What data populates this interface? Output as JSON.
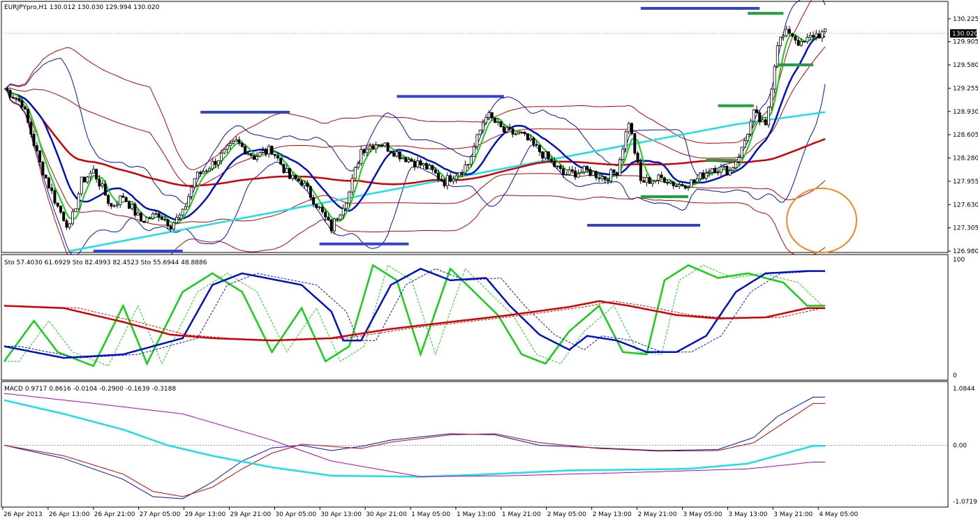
{
  "window": {
    "main_label": "EURJPYpro,H1  130.012 130.030 129.994 130.020",
    "stoch_label": "Sto 57.4030 61.6929  Sto 82.4993 82.4523  Sto 55.6944 48.8886",
    "macd_label": "MACD 0.9717 0.8616 -0.0104 -0.2900 -0.1639 -0.3188",
    "current_price": "130.020"
  },
  "colors": {
    "red": "#d20000",
    "thin_red": "#c40000",
    "blue": "#0010c8",
    "green": "#12d012",
    "cyan": "#19e0e8",
    "magenta": "#c000c0",
    "level": "#3344cc",
    "level_green": "#20a040",
    "circle": "#f08a1e"
  },
  "chart_data": [
    {
      "type": "candlestick",
      "title": "EURJPYpro,H1",
      "ylim": [
        126.98,
        130.35
      ],
      "yticks": [
        "130.225",
        "129.905",
        "129.580",
        "129.255",
        "128.930",
        "128.605",
        "128.280",
        "127.955",
        "127.630",
        "127.305",
        "126.980"
      ],
      "xticks": [
        "26 Apr 2013",
        "26 Apr 13:00",
        "26 Apr 21:00",
        "27 Apr 05:00",
        "29 Apr 13:00",
        "29 Apr 21:00",
        "30 Apr 05:00",
        "30 Apr 13:00",
        "30 Apr 21:00",
        "1 May 05:00",
        "1 May 13:00",
        "1 May 21:00",
        "2 May 05:00",
        "2 May 13:00",
        "2 May 21:00",
        "3 May 05:00",
        "3 May 13:00",
        "3 May 21:00",
        "4 May 05:00"
      ],
      "current_price": 130.02,
      "close_anchors": [
        [
          0,
          129.25
        ],
        [
          6,
          129.05
        ],
        [
          12,
          128.2
        ],
        [
          18,
          127.6
        ],
        [
          22,
          127.3
        ],
        [
          26,
          127.95
        ],
        [
          30,
          128.1
        ],
        [
          36,
          127.6
        ],
        [
          40,
          127.75
        ],
        [
          46,
          127.4
        ],
        [
          52,
          127.5
        ],
        [
          56,
          127.35
        ],
        [
          60,
          127.5
        ],
        [
          64,
          128.0
        ],
        [
          70,
          128.2
        ],
        [
          78,
          128.5
        ],
        [
          84,
          128.3
        ],
        [
          90,
          128.4
        ],
        [
          96,
          128.0
        ],
        [
          100,
          127.95
        ],
        [
          104,
          127.7
        ],
        [
          110,
          127.3
        ],
        [
          116,
          127.8
        ],
        [
          120,
          128.4
        ],
        [
          126,
          128.5
        ],
        [
          134,
          128.3
        ],
        [
          142,
          128.15
        ],
        [
          148,
          127.95
        ],
        [
          156,
          128.2
        ],
        [
          162,
          128.9
        ],
        [
          168,
          128.65
        ],
        [
          174,
          128.6
        ],
        [
          182,
          128.3
        ],
        [
          188,
          128.05
        ],
        [
          196,
          128.1
        ],
        [
          202,
          128.0
        ],
        [
          206,
          128.1
        ],
        [
          210,
          128.8
        ],
        [
          214,
          127.95
        ],
        [
          222,
          128.0
        ],
        [
          226,
          127.9
        ],
        [
          232,
          127.95
        ],
        [
          238,
          128.15
        ],
        [
          244,
          128.1
        ],
        [
          248,
          128.4
        ],
        [
          252,
          128.9
        ],
        [
          256,
          128.7
        ],
        [
          260,
          129.9
        ],
        [
          264,
          130.05
        ],
        [
          268,
          129.85
        ],
        [
          272,
          130.0
        ],
        [
          276,
          130.02
        ]
      ],
      "levels": [
        {
          "color": "blue",
          "from": 66,
          "to": 96,
          "y": 128.92
        },
        {
          "color": "blue",
          "from": 132,
          "to": 168,
          "y": 129.14
        },
        {
          "color": "blue",
          "from": 214,
          "to": 254,
          "y": 130.37
        },
        {
          "color": "blue",
          "from": 30,
          "to": 60,
          "y": 126.98
        },
        {
          "color": "blue",
          "from": 106,
          "to": 136,
          "y": 127.08
        },
        {
          "color": "blue",
          "from": 196,
          "to": 234,
          "y": 127.34
        },
        {
          "color": "green",
          "from": 240,
          "to": 252,
          "y": 129.01
        },
        {
          "color": "green",
          "from": 214,
          "to": 230,
          "y": 127.74
        },
        {
          "color": "green",
          "from": 236,
          "to": 246,
          "y": 128.25
        },
        {
          "color": "green",
          "from": 250,
          "to": 262,
          "y": 130.3
        },
        {
          "color": "green",
          "from": 260,
          "to": 272,
          "y": 129.58
        }
      ]
    },
    {
      "type": "line",
      "title": "Sto",
      "ylim": [
        0,
        100
      ],
      "yticks": [
        "100",
        "0"
      ],
      "series": [
        {
          "color": "green",
          "points": [
            [
              0,
              12
            ],
            [
              10,
              47
            ],
            [
              18,
              20
            ],
            [
              30,
              8
            ],
            [
              40,
              60
            ],
            [
              48,
              10
            ],
            [
              60,
              72
            ],
            [
              70,
              88
            ],
            [
              80,
              72
            ],
            [
              90,
              20
            ],
            [
              100,
              58
            ],
            [
              108,
              12
            ],
            [
              116,
              25
            ],
            [
              124,
              95
            ],
            [
              132,
              82
            ],
            [
              140,
              18
            ],
            [
              150,
              92
            ],
            [
              158,
              72
            ],
            [
              166,
              52
            ],
            [
              174,
              18
            ],
            [
              182,
              10
            ],
            [
              190,
              38
            ],
            [
              200,
              60
            ],
            [
              208,
              20
            ],
            [
              216,
              18
            ],
            [
              222,
              82
            ],
            [
              230,
              95
            ],
            [
              240,
              84
            ],
            [
              250,
              88
            ],
            [
              262,
              80
            ],
            [
              270,
              60
            ]
          ]
        },
        {
          "color": "blue",
          "points": [
            [
              0,
              25
            ],
            [
              20,
              15
            ],
            [
              40,
              18
            ],
            [
              60,
              32
            ],
            [
              70,
              78
            ],
            [
              80,
              88
            ],
            [
              100,
              78
            ],
            [
              110,
              55
            ],
            [
              114,
              30
            ],
            [
              120,
              30
            ],
            [
              130,
              78
            ],
            [
              140,
              92
            ],
            [
              150,
              82
            ],
            [
              162,
              84
            ],
            [
              170,
              60
            ],
            [
              180,
              35
            ],
            [
              190,
              22
            ],
            [
              196,
              34
            ],
            [
              206,
              30
            ],
            [
              216,
              20
            ],
            [
              226,
              20
            ],
            [
              236,
              34
            ],
            [
              246,
              72
            ],
            [
              256,
              88
            ],
            [
              270,
              90
            ]
          ]
        },
        {
          "color": "red",
          "points": [
            [
              0,
              60
            ],
            [
              20,
              58
            ],
            [
              40,
              46
            ],
            [
              56,
              35
            ],
            [
              70,
              32
            ],
            [
              90,
              30
            ],
            [
              110,
              32
            ],
            [
              130,
              40
            ],
            [
              150,
              46
            ],
            [
              170,
              52
            ],
            [
              190,
              59
            ],
            [
              200,
              64
            ],
            [
              210,
              60
            ],
            [
              226,
              52
            ],
            [
              240,
              49
            ],
            [
              256,
              50
            ],
            [
              270,
              58
            ]
          ]
        }
      ]
    },
    {
      "type": "line",
      "title": "MACD",
      "ylim": [
        -1.0719,
        1.0844
      ],
      "yticks": [
        "1.0844",
        "0.00",
        "-1.0719"
      ],
      "series": [
        {
          "color": "blue",
          "points": [
            [
              0,
              0.0
            ],
            [
              20,
              -0.25
            ],
            [
              40,
              -0.65
            ],
            [
              50,
              -0.98
            ],
            [
              60,
              -1.02
            ],
            [
              70,
              -0.7
            ],
            [
              80,
              -0.3
            ],
            [
              90,
              -0.05
            ],
            [
              100,
              0.0
            ],
            [
              110,
              -0.1
            ],
            [
              120,
              -0.02
            ],
            [
              130,
              0.1
            ],
            [
              150,
              0.22
            ],
            [
              165,
              0.2
            ],
            [
              180,
              0.0
            ],
            [
              200,
              -0.05
            ],
            [
              220,
              -0.1
            ],
            [
              240,
              -0.08
            ],
            [
              252,
              0.15
            ],
            [
              260,
              0.55
            ],
            [
              272,
              0.92
            ]
          ]
        },
        {
          "color": "red",
          "points": [
            [
              0,
              0.0
            ],
            [
              20,
              -0.2
            ],
            [
              40,
              -0.55
            ],
            [
              50,
              -0.88
            ],
            [
              60,
              -0.98
            ],
            [
              70,
              -0.8
            ],
            [
              80,
              -0.45
            ],
            [
              90,
              -0.15
            ],
            [
              100,
              0.02
            ],
            [
              110,
              -0.02
            ],
            [
              120,
              -0.06
            ],
            [
              130,
              0.06
            ],
            [
              150,
              0.2
            ],
            [
              165,
              0.22
            ],
            [
              180,
              0.05
            ],
            [
              200,
              -0.06
            ],
            [
              220,
              -0.11
            ],
            [
              240,
              -0.1
            ],
            [
              252,
              0.05
            ],
            [
              260,
              0.35
            ],
            [
              272,
              0.8
            ]
          ]
        },
        {
          "color": "cyan",
          "points": [
            [
              0,
              0.86
            ],
            [
              20,
              0.6
            ],
            [
              40,
              0.3
            ],
            [
              55,
              0.0
            ],
            [
              70,
              -0.2
            ],
            [
              90,
              -0.42
            ],
            [
              110,
              -0.58
            ],
            [
              140,
              -0.6
            ],
            [
              160,
              -0.56
            ],
            [
              190,
              -0.48
            ],
            [
              230,
              -0.45
            ],
            [
              250,
              -0.35
            ],
            [
              272,
              -0.01
            ]
          ]
        },
        {
          "color": "magenta",
          "points": [
            [
              0,
              0.99
            ],
            [
              30,
              0.8
            ],
            [
              60,
              0.6
            ],
            [
              90,
              0.1
            ],
            [
              110,
              -0.3
            ],
            [
              140,
              -0.6
            ],
            [
              170,
              -0.58
            ],
            [
              210,
              -0.52
            ],
            [
              250,
              -0.45
            ],
            [
              272,
              -0.32
            ]
          ]
        }
      ]
    }
  ]
}
